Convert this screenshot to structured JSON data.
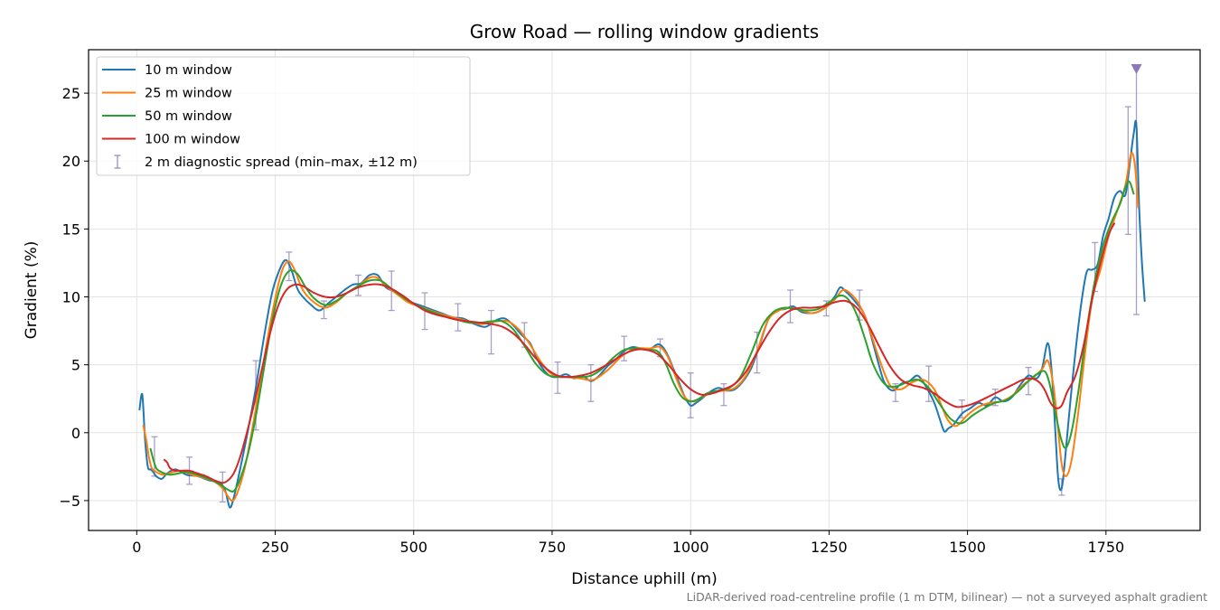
{
  "chart_data": {
    "type": "line",
    "title": "Grow Road — rolling window gradients",
    "xlabel": "Distance uphill (m)",
    "ylabel": "Gradient (%)",
    "note": "LiDAR-derived road-centreline profile (1 m DTM, bilinear) — not a surveyed asphalt gradient",
    "xlim": [
      -87,
      1920
    ],
    "ylim": [
      -7.2,
      28.2
    ],
    "xticks": [
      0,
      250,
      500,
      750,
      1000,
      1250,
      1500,
      1750
    ],
    "yticks": [
      -5,
      0,
      5,
      10,
      15,
      20,
      25
    ],
    "grid": true,
    "legend_position": "top-left",
    "series": [
      {
        "name": "10 m window",
        "color": "#1f77b4",
        "x": [
          5,
          10,
          15,
          20,
          25,
          30,
          35,
          45,
          55,
          70,
          90,
          110,
          130,
          150,
          160,
          168,
          175,
          185,
          200,
          215,
          230,
          245,
          260,
          270,
          280,
          290,
          300,
          315,
          330,
          345,
          360,
          375,
          390,
          405,
          420,
          435,
          450,
          470,
          490,
          510,
          530,
          550,
          570,
          590,
          610,
          630,
          650,
          665,
          680,
          695,
          710,
          720,
          730,
          745,
          760,
          775,
          790,
          805,
          820,
          835,
          850,
          865,
          880,
          895,
          910,
          925,
          940,
          950,
          960,
          970,
          980,
          990,
          1000,
          1010,
          1020,
          1035,
          1050,
          1065,
          1080,
          1095,
          1110,
          1125,
          1140,
          1155,
          1170,
          1185,
          1200,
          1215,
          1230,
          1245,
          1260,
          1270,
          1280,
          1290,
          1300,
          1310,
          1320,
          1330,
          1340,
          1350,
          1365,
          1380,
          1395,
          1410,
          1425,
          1440,
          1450,
          1458,
          1465,
          1475,
          1490,
          1505,
          1520,
          1535,
          1550,
          1565,
          1580,
          1595,
          1610,
          1625,
          1635,
          1645,
          1652,
          1658,
          1664,
          1670,
          1676,
          1685,
          1695,
          1705,
          1715,
          1725,
          1735,
          1745,
          1755,
          1765,
          1775,
          1785,
          1793,
          1800,
          1805,
          1810,
          1815,
          1820
        ],
        "y": [
          1.7,
          2.8,
          -0.5,
          -2.5,
          -2.7,
          -2.9,
          -3.2,
          -3.4,
          -3.0,
          -2.7,
          -3.1,
          -3.2,
          -3.5,
          -3.7,
          -4.3,
          -5.5,
          -4.8,
          -3.0,
          0.0,
          3.3,
          7.1,
          10.4,
          12.2,
          12.7,
          11.9,
          10.6,
          10.0,
          9.4,
          9.0,
          9.5,
          10.0,
          10.5,
          10.9,
          11.0,
          11.6,
          11.6,
          10.7,
          10.3,
          9.7,
          9.4,
          9.1,
          8.8,
          8.5,
          8.4,
          8.0,
          7.8,
          8.3,
          8.4,
          7.9,
          7.2,
          6.6,
          5.7,
          4.9,
          4.2,
          4.1,
          4.3,
          4.0,
          4.2,
          3.8,
          4.2,
          4.9,
          5.4,
          6.0,
          6.3,
          6.2,
          6.1,
          6.5,
          6.3,
          5.6,
          4.6,
          3.6,
          2.6,
          2.0,
          2.2,
          2.5,
          3.0,
          3.3,
          3.1,
          3.2,
          3.8,
          4.8,
          6.5,
          8.3,
          9.0,
          9.1,
          9.3,
          8.9,
          8.8,
          8.9,
          9.3,
          10.0,
          10.7,
          10.4,
          10.0,
          9.5,
          9.0,
          8.0,
          6.5,
          5.0,
          3.7,
          3.1,
          3.6,
          3.8,
          4.2,
          3.4,
          2.2,
          1.0,
          0.1,
          0.3,
          0.6,
          1.4,
          1.8,
          2.2,
          2.0,
          2.6,
          2.3,
          2.6,
          3.5,
          4.2,
          4.0,
          4.8,
          6.6,
          4.5,
          0.5,
          -3.5,
          -4.1,
          -2.0,
          2.0,
          6.0,
          9.4,
          11.8,
          12.0,
          12.4,
          14.5,
          15.8,
          17.3,
          17.8,
          17.5,
          19.8,
          22.0,
          22.6,
          16.5,
          12.5,
          9.7
        ]
      },
      {
        "name": "25 m window",
        "color": "#ff7f0e",
        "x": [
          12,
          17,
          22,
          27,
          32,
          40,
          50,
          65,
          80,
          100,
          120,
          140,
          155,
          165,
          172,
          180,
          195,
          210,
          225,
          240,
          255,
          265,
          275,
          285,
          300,
          320,
          340,
          360,
          380,
          400,
          420,
          435,
          450,
          470,
          490,
          510,
          530,
          560,
          590,
          620,
          650,
          670,
          690,
          710,
          730,
          750,
          775,
          800,
          825,
          850,
          875,
          900,
          925,
          945,
          960,
          975,
          990,
          1005,
          1020,
          1040,
          1060,
          1080,
          1100,
          1120,
          1140,
          1160,
          1180,
          1200,
          1220,
          1240,
          1260,
          1275,
          1290,
          1305,
          1320,
          1340,
          1360,
          1380,
          1400,
          1420,
          1440,
          1455,
          1465,
          1480,
          1500,
          1520,
          1540,
          1560,
          1580,
          1600,
          1620,
          1635,
          1645,
          1655,
          1663,
          1670,
          1678,
          1688,
          1700,
          1712,
          1725,
          1740,
          1755,
          1770,
          1785,
          1795,
          1802,
          1808
        ],
        "y": [
          0.5,
          -0.5,
          -1.8,
          -2.6,
          -2.8,
          -3.0,
          -3.1,
          -2.9,
          -2.8,
          -3.1,
          -3.3,
          -3.6,
          -4.1,
          -4.7,
          -5.0,
          -4.6,
          -2.6,
          0.6,
          4.2,
          7.8,
          10.8,
          12.2,
          12.6,
          12.0,
          10.5,
          9.6,
          9.2,
          9.6,
          10.3,
          10.8,
          11.4,
          11.4,
          10.8,
          10.2,
          9.6,
          9.3,
          9.0,
          8.6,
          8.3,
          8.0,
          8.2,
          8.2,
          7.6,
          6.5,
          5.2,
          4.3,
          4.1,
          4.0,
          3.9,
          4.6,
          5.6,
          6.2,
          6.2,
          6.3,
          5.5,
          3.9,
          2.6,
          2.3,
          2.6,
          3.0,
          3.1,
          3.3,
          4.2,
          6.0,
          8.3,
          9.0,
          9.2,
          9.0,
          8.8,
          9.1,
          9.8,
          10.5,
          10.2,
          9.4,
          8.0,
          5.5,
          3.5,
          3.2,
          3.7,
          3.9,
          3.2,
          1.8,
          0.9,
          0.5,
          1.3,
          1.9,
          2.2,
          2.3,
          2.7,
          3.5,
          4.1,
          4.7,
          5.3,
          3.5,
          0.5,
          -2.3,
          -3.2,
          -2.0,
          1.5,
          5.8,
          9.8,
          12.0,
          14.5,
          16.3,
          18.2,
          20.5,
          19.8,
          16.6
        ]
      },
      {
        "name": "50 m window",
        "color": "#2ca02c",
        "x": [
          25,
          30,
          35,
          40,
          50,
          60,
          75,
          90,
          110,
          130,
          150,
          165,
          175,
          185,
          200,
          215,
          230,
          245,
          260,
          275,
          290,
          305,
          320,
          340,
          360,
          380,
          400,
          420,
          440,
          460,
          480,
          500,
          520,
          540,
          560,
          580,
          600,
          620,
          640,
          660,
          680,
          700,
          720,
          740,
          760,
          780,
          800,
          820,
          840,
          860,
          880,
          900,
          920,
          940,
          955,
          970,
          985,
          1000,
          1015,
          1030,
          1050,
          1070,
          1090,
          1110,
          1130,
          1150,
          1170,
          1190,
          1210,
          1230,
          1250,
          1270,
          1285,
          1300,
          1315,
          1330,
          1350,
          1370,
          1390,
          1410,
          1430,
          1450,
          1470,
          1490,
          1510,
          1530,
          1550,
          1570,
          1590,
          1610,
          1625,
          1640,
          1650,
          1660,
          1670,
          1678,
          1688,
          1700,
          1715,
          1730,
          1745,
          1760,
          1775,
          1790,
          1800
        ],
        "y": [
          -1.2,
          -2.0,
          -2.6,
          -2.8,
          -3.0,
          -3.1,
          -3.0,
          -2.9,
          -3.1,
          -3.4,
          -3.8,
          -4.2,
          -4.3,
          -3.6,
          -1.7,
          1.2,
          4.8,
          8.3,
          10.8,
          11.9,
          11.7,
          10.7,
          9.9,
          9.4,
          9.7,
          10.3,
          10.8,
          11.2,
          11.2,
          10.6,
          10.0,
          9.5,
          9.1,
          8.8,
          8.5,
          8.3,
          8.1,
          8.1,
          8.2,
          8.2,
          7.6,
          6.4,
          5.1,
          4.3,
          4.1,
          4.1,
          4.1,
          4.2,
          4.7,
          5.5,
          6.1,
          6.2,
          6.1,
          6.0,
          5.1,
          3.6,
          2.6,
          2.3,
          2.5,
          2.9,
          3.1,
          3.3,
          4.1,
          5.9,
          7.9,
          8.9,
          9.2,
          9.1,
          9.0,
          9.1,
          9.6,
          10.1,
          9.8,
          8.7,
          6.9,
          5.0,
          3.6,
          3.4,
          3.7,
          3.9,
          3.3,
          2.1,
          1.0,
          0.7,
          1.3,
          1.8,
          2.2,
          2.4,
          3.0,
          3.8,
          4.3,
          4.5,
          3.3,
          1.2,
          -0.6,
          -1.1,
          0.1,
          3.0,
          7.5,
          11.2,
          13.8,
          15.5,
          16.8,
          18.5,
          17.6
        ]
      },
      {
        "name": "100 m window",
        "color": "#d62728",
        "x": [
          50,
          55,
          60,
          70,
          80,
          95,
          110,
          125,
          140,
          155,
          165,
          175,
          185,
          195,
          210,
          225,
          240,
          255,
          270,
          285,
          300,
          320,
          340,
          360,
          380,
          400,
          420,
          440,
          460,
          480,
          500,
          520,
          540,
          560,
          580,
          600,
          620,
          640,
          660,
          680,
          700,
          720,
          740,
          760,
          780,
          800,
          820,
          840,
          860,
          880,
          900,
          920,
          940,
          960,
          980,
          1000,
          1020,
          1040,
          1060,
          1080,
          1100,
          1120,
          1140,
          1160,
          1180,
          1200,
          1220,
          1240,
          1260,
          1280,
          1300,
          1320,
          1340,
          1360,
          1380,
          1400,
          1420,
          1440,
          1460,
          1480,
          1500,
          1520,
          1540,
          1560,
          1580,
          1600,
          1615,
          1630,
          1640,
          1650,
          1660,
          1670,
          1680,
          1695,
          1710,
          1725,
          1740,
          1755,
          1765
        ],
        "y": [
          -2.0,
          -2.2,
          -2.6,
          -2.8,
          -2.8,
          -2.8,
          -3.0,
          -3.2,
          -3.5,
          -3.7,
          -3.5,
          -3.0,
          -2.0,
          -0.6,
          1.8,
          4.5,
          7.2,
          9.3,
          10.5,
          10.9,
          10.8,
          10.3,
          10.0,
          10.0,
          10.3,
          10.7,
          10.9,
          10.9,
          10.6,
          10.1,
          9.5,
          9.0,
          8.7,
          8.5,
          8.3,
          8.2,
          8.1,
          8.0,
          7.8,
          7.3,
          6.5,
          5.5,
          4.7,
          4.2,
          4.1,
          4.2,
          4.4,
          4.8,
          5.3,
          5.8,
          6.1,
          6.1,
          5.8,
          5.0,
          4.0,
          3.2,
          2.8,
          2.9,
          3.2,
          3.6,
          4.5,
          5.9,
          7.3,
          8.4,
          9.0,
          9.2,
          9.2,
          9.3,
          9.6,
          9.7,
          9.2,
          8.0,
          6.4,
          4.9,
          3.9,
          3.5,
          3.3,
          2.9,
          2.3,
          1.9,
          2.0,
          2.3,
          2.7,
          3.1,
          3.5,
          3.9,
          4.0,
          3.7,
          3.1,
          2.2,
          1.8,
          2.0,
          3.0,
          4.2,
          6.5,
          9.8,
          12.5,
          14.6,
          15.4
        ]
      }
    ],
    "errorbars": {
      "name": "2 m diagnostic spread (min–max, ±12 m)",
      "color": "#9a8fbf",
      "points": [
        {
          "x": 32,
          "lo": -3.2,
          "hi": -0.3
        },
        {
          "x": 95,
          "lo": -3.8,
          "hi": -1.8
        },
        {
          "x": 155,
          "lo": -5.1,
          "hi": -2.9
        },
        {
          "x": 215,
          "lo": 0.2,
          "hi": 5.3
        },
        {
          "x": 275,
          "lo": 11.2,
          "hi": 13.3
        },
        {
          "x": 338,
          "lo": 8.4,
          "hi": 9.7
        },
        {
          "x": 400,
          "lo": 10.1,
          "hi": 11.6
        },
        {
          "x": 460,
          "lo": 9.0,
          "hi": 11.9
        },
        {
          "x": 520,
          "lo": 7.6,
          "hi": 10.3
        },
        {
          "x": 580,
          "lo": 7.5,
          "hi": 9.5
        },
        {
          "x": 640,
          "lo": 5.8,
          "hi": 9.0
        },
        {
          "x": 700,
          "lo": 6.3,
          "hi": 8.1
        },
        {
          "x": 760,
          "lo": 2.9,
          "hi": 5.2
        },
        {
          "x": 820,
          "lo": 2.3,
          "hi": 5.0
        },
        {
          "x": 880,
          "lo": 5.3,
          "hi": 7.1
        },
        {
          "x": 945,
          "lo": 5.6,
          "hi": 6.9
        },
        {
          "x": 1000,
          "lo": 1.1,
          "hi": 4.4
        },
        {
          "x": 1060,
          "lo": 2.0,
          "hi": 3.6
        },
        {
          "x": 1120,
          "lo": 4.4,
          "hi": 7.4
        },
        {
          "x": 1180,
          "lo": 8.1,
          "hi": 10.5
        },
        {
          "x": 1245,
          "lo": 8.6,
          "hi": 9.7
        },
        {
          "x": 1305,
          "lo": 8.3,
          "hi": 10.5
        },
        {
          "x": 1370,
          "lo": 2.3,
          "hi": 3.6
        },
        {
          "x": 1430,
          "lo": 2.3,
          "hi": 4.9
        },
        {
          "x": 1490,
          "lo": 1.1,
          "hi": 2.4
        },
        {
          "x": 1550,
          "lo": 2.0,
          "hi": 3.2
        },
        {
          "x": 1610,
          "lo": 2.8,
          "hi": 4.8
        },
        {
          "x": 1670,
          "lo": -4.6,
          "hi": -3.4
        },
        {
          "x": 1730,
          "lo": 10.4,
          "hi": 14.0
        },
        {
          "x": 1790,
          "lo": 14.6,
          "hi": 24.0
        },
        {
          "x": 1805,
          "lo": 8.7,
          "hi": 26.8
        }
      ]
    },
    "overflow_marker": {
      "x": 1805,
      "y": 26.8,
      "shape": "triangle-down",
      "color": "#8b78b8"
    }
  }
}
